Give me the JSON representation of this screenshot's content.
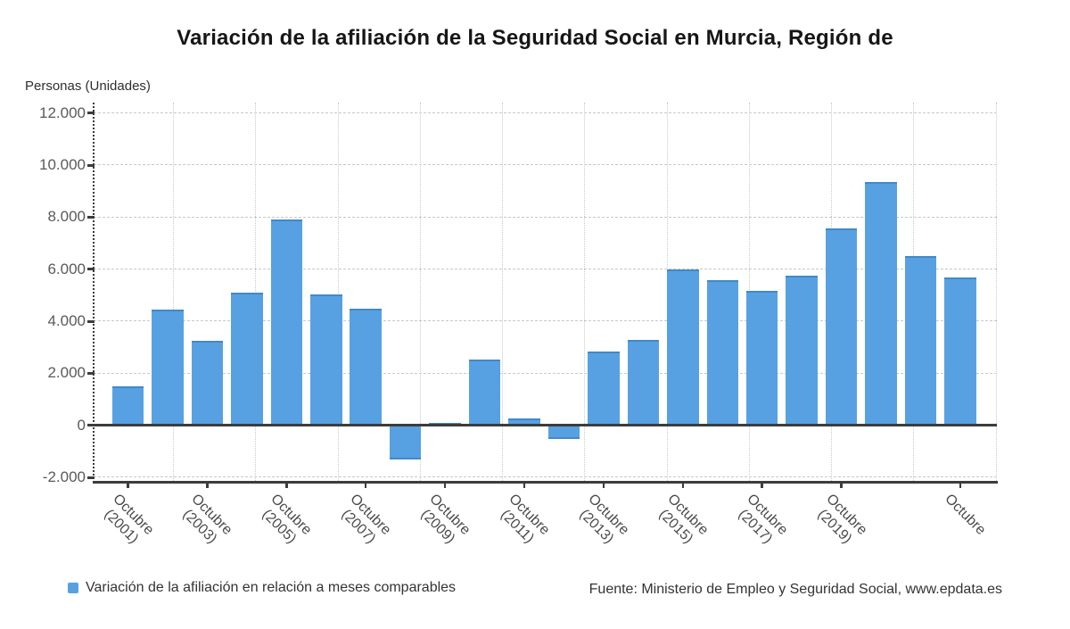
{
  "title": "Variación de la afiliación de la Seguridad Social en Murcia, Región de",
  "y_axis_title": "Personas (Unidades)",
  "legend": {
    "label": "Variación de la afiliación en relación a meses comparables"
  },
  "source": "Fuente: Ministerio de Empleo y Seguridad Social, www.epdata.es",
  "colors": {
    "bar": "#57a1e2",
    "bar_edge": "#4289c7",
    "grid": "#c9c9c9",
    "axis": "#3c3c3c",
    "title": "#161616",
    "y_tick_label": "#5a5a5a",
    "x_tick_label": "#4a4a4a",
    "footer_text": "#333333"
  },
  "chart_data": {
    "type": "bar",
    "title": "Variación de la afiliación de la Seguridad Social en Murcia, Región de",
    "ylabel": "Personas (Unidades)",
    "series_name": "Variación de la afiliación en relación a meses comparables",
    "grid": true,
    "legend_position": "bottom-left",
    "ylim": [
      -2220,
      12400
    ],
    "y_ticks": [
      12000,
      10000,
      8000,
      6000,
      4000,
      2000,
      0,
      -2000
    ],
    "y_tick_labels": [
      "12.000",
      "10.000",
      "8.000",
      "6.000",
      "4.000",
      "2.000",
      "0",
      "-2.000"
    ],
    "values": [
      1500,
      4450,
      3260,
      5090,
      7910,
      5030,
      4480,
      -1310,
      100,
      2520,
      260,
      -510,
      2840,
      3290,
      5980,
      5570,
      5170,
      5740,
      7580,
      9350,
      6520,
      5680
    ],
    "x_tick_labels": [
      {
        "bar": 0,
        "month": "Octubre",
        "year": "(2001)"
      },
      {
        "bar": 2,
        "month": "Octubre",
        "year": "(2003)"
      },
      {
        "bar": 4,
        "month": "Octubre",
        "year": "(2005)"
      },
      {
        "bar": 6,
        "month": "Octubre",
        "year": "(2007)"
      },
      {
        "bar": 8,
        "month": "Octubre",
        "year": "(2009)"
      },
      {
        "bar": 10,
        "month": "Octubre",
        "year": "(2011)"
      },
      {
        "bar": 12,
        "month": "Octubre",
        "year": "(2013)"
      },
      {
        "bar": 14,
        "month": "Octubre",
        "year": "(2015)"
      },
      {
        "bar": 16,
        "month": "Octubre",
        "year": "(2017)"
      },
      {
        "bar": 18,
        "month": "Octubre",
        "year": "(2019)"
      },
      {
        "bar": 21,
        "month": "Octubre",
        "year": ""
      }
    ]
  }
}
